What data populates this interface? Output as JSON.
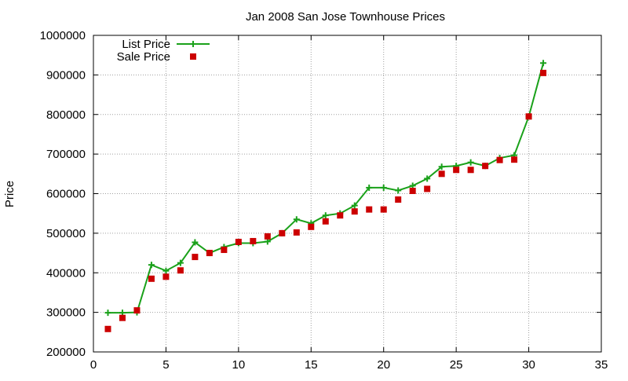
{
  "chart_data": {
    "type": "line",
    "title": "Jan 2008 San Jose Townhouse Prices",
    "xlabel": "",
    "ylabel": "Price",
    "xlim": [
      0,
      35
    ],
    "ylim": [
      200000,
      1000000
    ],
    "x_ticks": [
      "0",
      "5",
      "10",
      "15",
      "20",
      "25",
      "30",
      "35"
    ],
    "y_ticks": [
      "200000",
      "300000",
      "400000",
      "500000",
      "600000",
      "700000",
      "800000",
      "900000",
      "1000000"
    ],
    "grid": true,
    "legend_position": "top-left",
    "series": [
      {
        "name": "List Price",
        "style": "line+plus",
        "color": "#1aa11a",
        "x": [
          1,
          2,
          3,
          4,
          5,
          6,
          7,
          8,
          9,
          10,
          11,
          12,
          13,
          14,
          15,
          16,
          17,
          18,
          19,
          20,
          21,
          22,
          23,
          24,
          25,
          26,
          27,
          28,
          29,
          30,
          31
        ],
        "values": [
          299000,
          299000,
          300000,
          420000,
          405000,
          425000,
          477000,
          450000,
          465000,
          475000,
          475000,
          479000,
          500000,
          535000,
          525000,
          545000,
          550000,
          570000,
          615000,
          615000,
          608000,
          620000,
          638000,
          668000,
          670000,
          679000,
          670000,
          690000,
          697000,
          795000,
          930000
        ]
      },
      {
        "name": "Sale Price",
        "style": "square",
        "color": "#cc0000",
        "x": [
          1,
          2,
          3,
          4,
          5,
          6,
          7,
          8,
          9,
          10,
          11,
          12,
          13,
          14,
          15,
          16,
          17,
          18,
          19,
          20,
          21,
          22,
          23,
          24,
          25,
          26,
          27,
          28,
          29,
          30,
          31
        ],
        "values": [
          258000,
          286000,
          305000,
          385000,
          390000,
          406000,
          440000,
          450000,
          458000,
          478000,
          480000,
          492000,
          500000,
          502000,
          516000,
          530000,
          545000,
          555000,
          560000,
          560000,
          585000,
          607000,
          612000,
          650000,
          660000,
          660000,
          670000,
          685000,
          686000,
          795000,
          905000
        ]
      }
    ]
  }
}
